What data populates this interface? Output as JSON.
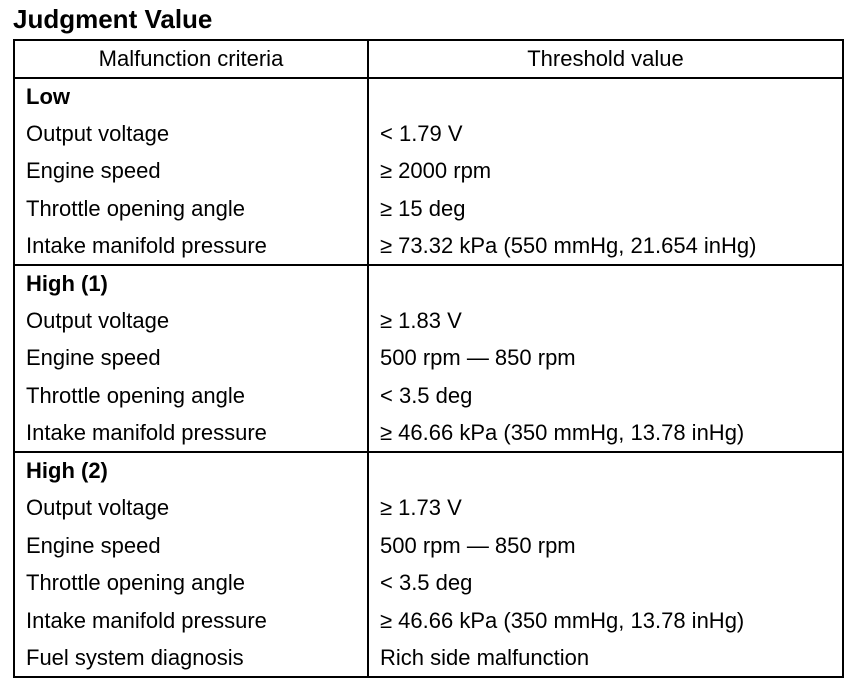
{
  "title": "Judgment Value",
  "table": {
    "headers": [
      "Malfunction criteria",
      "Threshold value"
    ],
    "groups": [
      {
        "label": "Low",
        "rows": [
          {
            "criterion": "Output voltage",
            "value": "< 1.79 V"
          },
          {
            "criterion": "Engine speed",
            "value": "≥ 2000 rpm"
          },
          {
            "criterion": "Throttle opening angle",
            "value": "≥ 15 deg"
          },
          {
            "criterion": "Intake manifold pressure",
            "value": "≥ 73.32 kPa (550 mmHg, 21.654 inHg)"
          }
        ]
      },
      {
        "label": "High (1)",
        "rows": [
          {
            "criterion": "Output voltage",
            "value": "≥ 1.83 V"
          },
          {
            "criterion": "Engine speed",
            "value": "500 rpm — 850 rpm"
          },
          {
            "criterion": "Throttle opening angle",
            "value": "< 3.5 deg"
          },
          {
            "criterion": "Intake manifold pressure",
            "value": "≥ 46.66 kPa (350 mmHg, 13.78 inHg)"
          }
        ]
      },
      {
        "label": "High (2)",
        "rows": [
          {
            "criterion": "Output voltage",
            "value": "≥ 1.73 V"
          },
          {
            "criterion": "Engine speed",
            "value": "500 rpm — 850 rpm"
          },
          {
            "criterion": "Throttle opening angle",
            "value": "< 3.5 deg"
          },
          {
            "criterion": "Intake manifold pressure",
            "value": "≥ 46.66 kPa (350 mmHg, 13.78 inHg)"
          },
          {
            "criterion": "Fuel system diagnosis",
            "value": "Rich side malfunction"
          }
        ]
      }
    ]
  }
}
